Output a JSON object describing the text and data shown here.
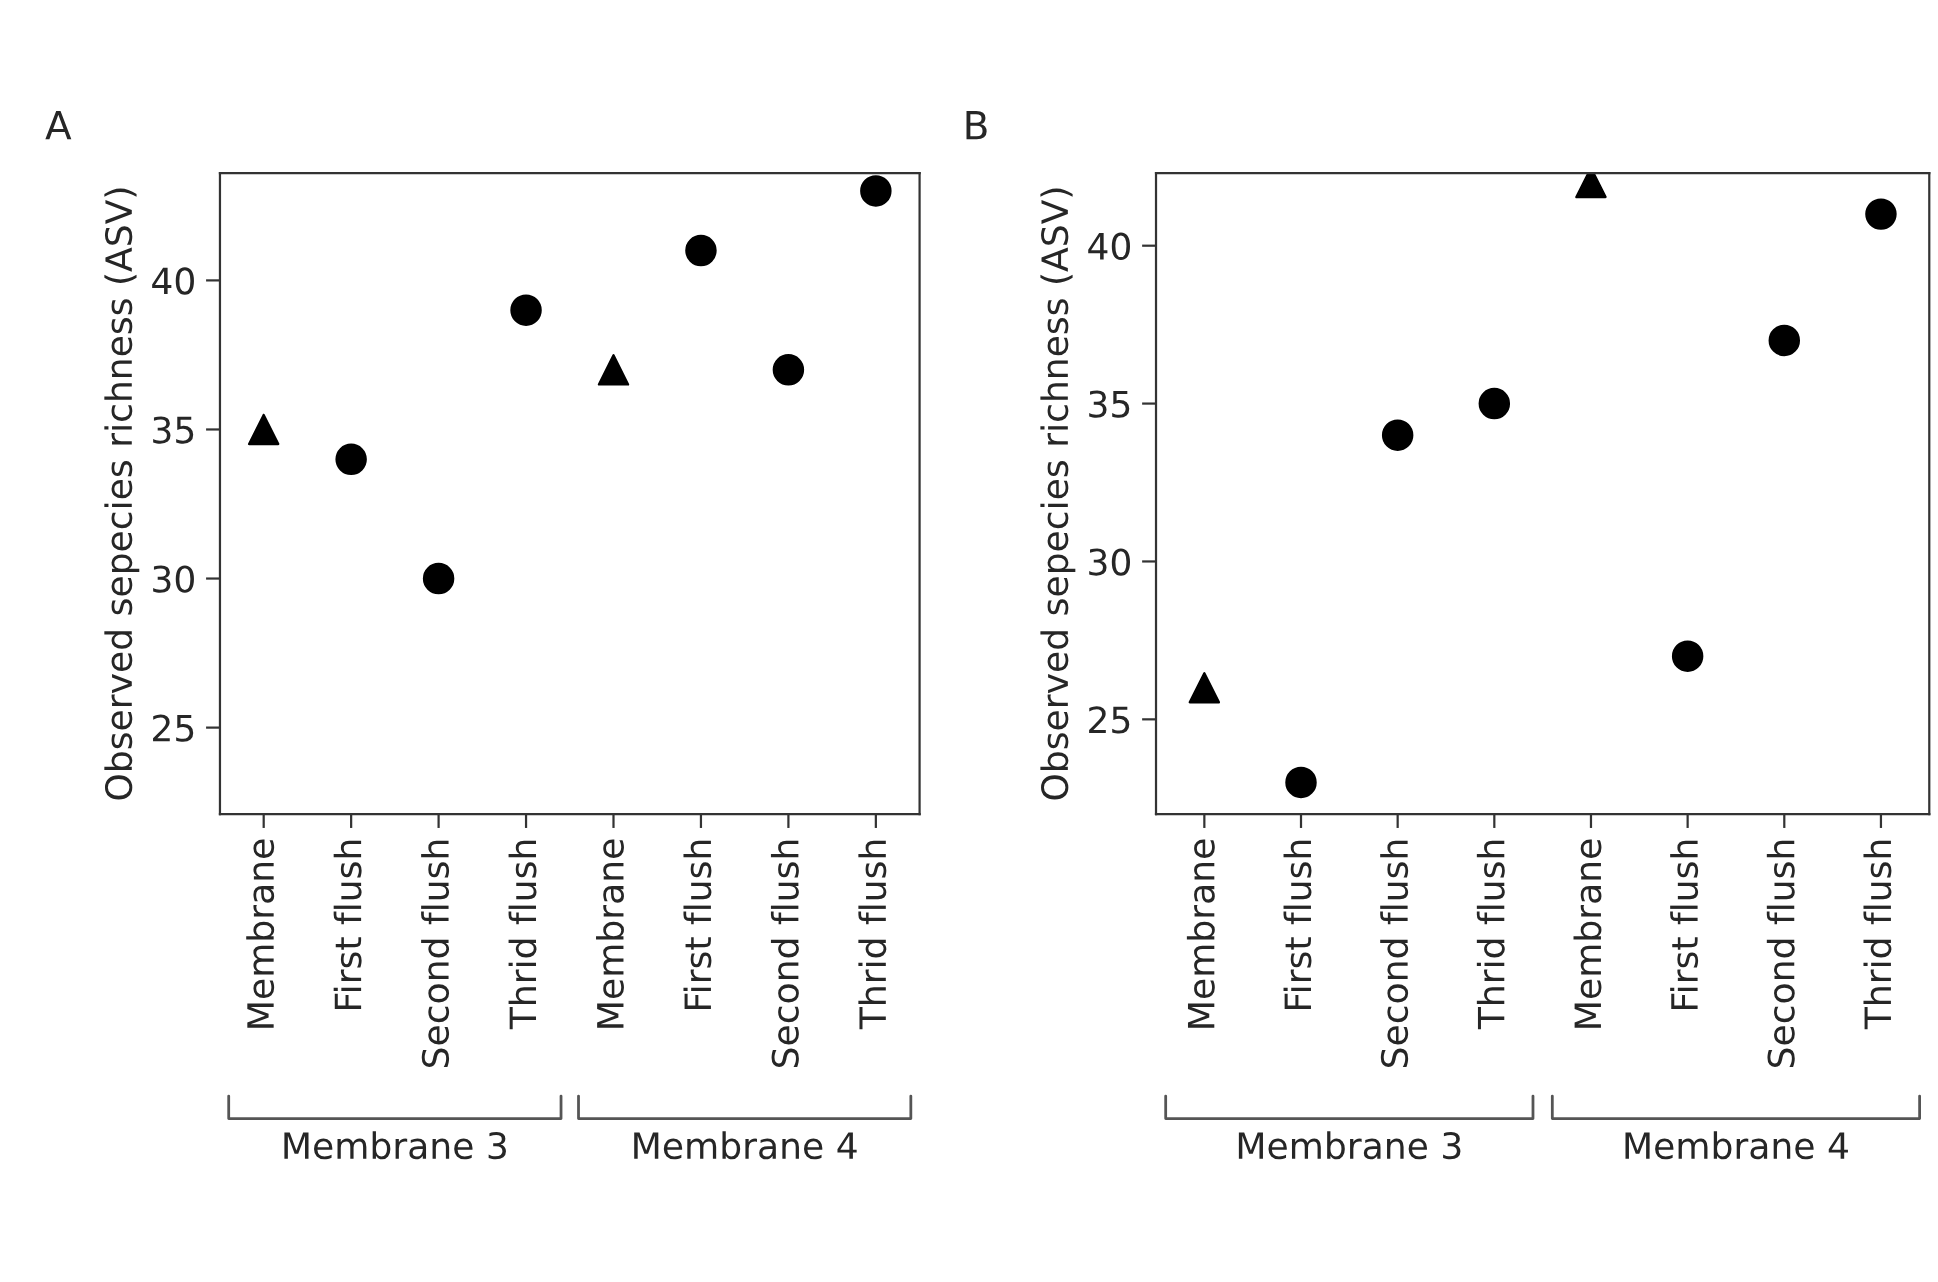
{
  "chart_data": [
    {
      "type": "scatter",
      "title": "A",
      "ylabel": "Observed sepecies richness (ASV)",
      "categories": [
        "Membrane",
        "First flush",
        "Second flush",
        "Thrid flush",
        "Membrane",
        "First flush",
        "Second flush",
        "Thrid flush"
      ],
      "series": [
        {
          "color": "#000000",
          "marker": "triangle",
          "values": [
            35,
            null,
            null,
            null,
            37,
            null,
            null,
            null
          ]
        },
        {
          "color": "#000000",
          "marker": "circle",
          "values": [
            null,
            34,
            30,
            39,
            null,
            41,
            37,
            43
          ]
        }
      ],
      "ylim": [
        22.1,
        43.6
      ],
      "yticks": [
        25,
        30,
        35,
        40
      ],
      "grid": false,
      "annotations": [
        "Membrane 3",
        "Membrane 4"
      ]
    },
    {
      "type": "scatter",
      "title": "B",
      "ylabel": "Observed sepecies richness (ASV)",
      "categories": [
        "Membrane",
        "First flush",
        "Second flush",
        "Thrid flush",
        "Membrane",
        "First flush",
        "Second flush",
        "Thrid flush"
      ],
      "series": [
        {
          "color": "#000000",
          "marker": "triangle",
          "values": [
            26,
            null,
            null,
            null,
            42,
            null,
            null,
            null
          ]
        },
        {
          "color": "#000000",
          "marker": "circle",
          "values": [
            null,
            23,
            34,
            35,
            null,
            27,
            37,
            41
          ]
        }
      ],
      "ylim": [
        22.0,
        42.3
      ],
      "yticks": [
        25,
        30,
        35,
        40
      ],
      "grid": false,
      "annotations": [
        "Membrane 3",
        "Membrane 4"
      ]
    }
  ]
}
